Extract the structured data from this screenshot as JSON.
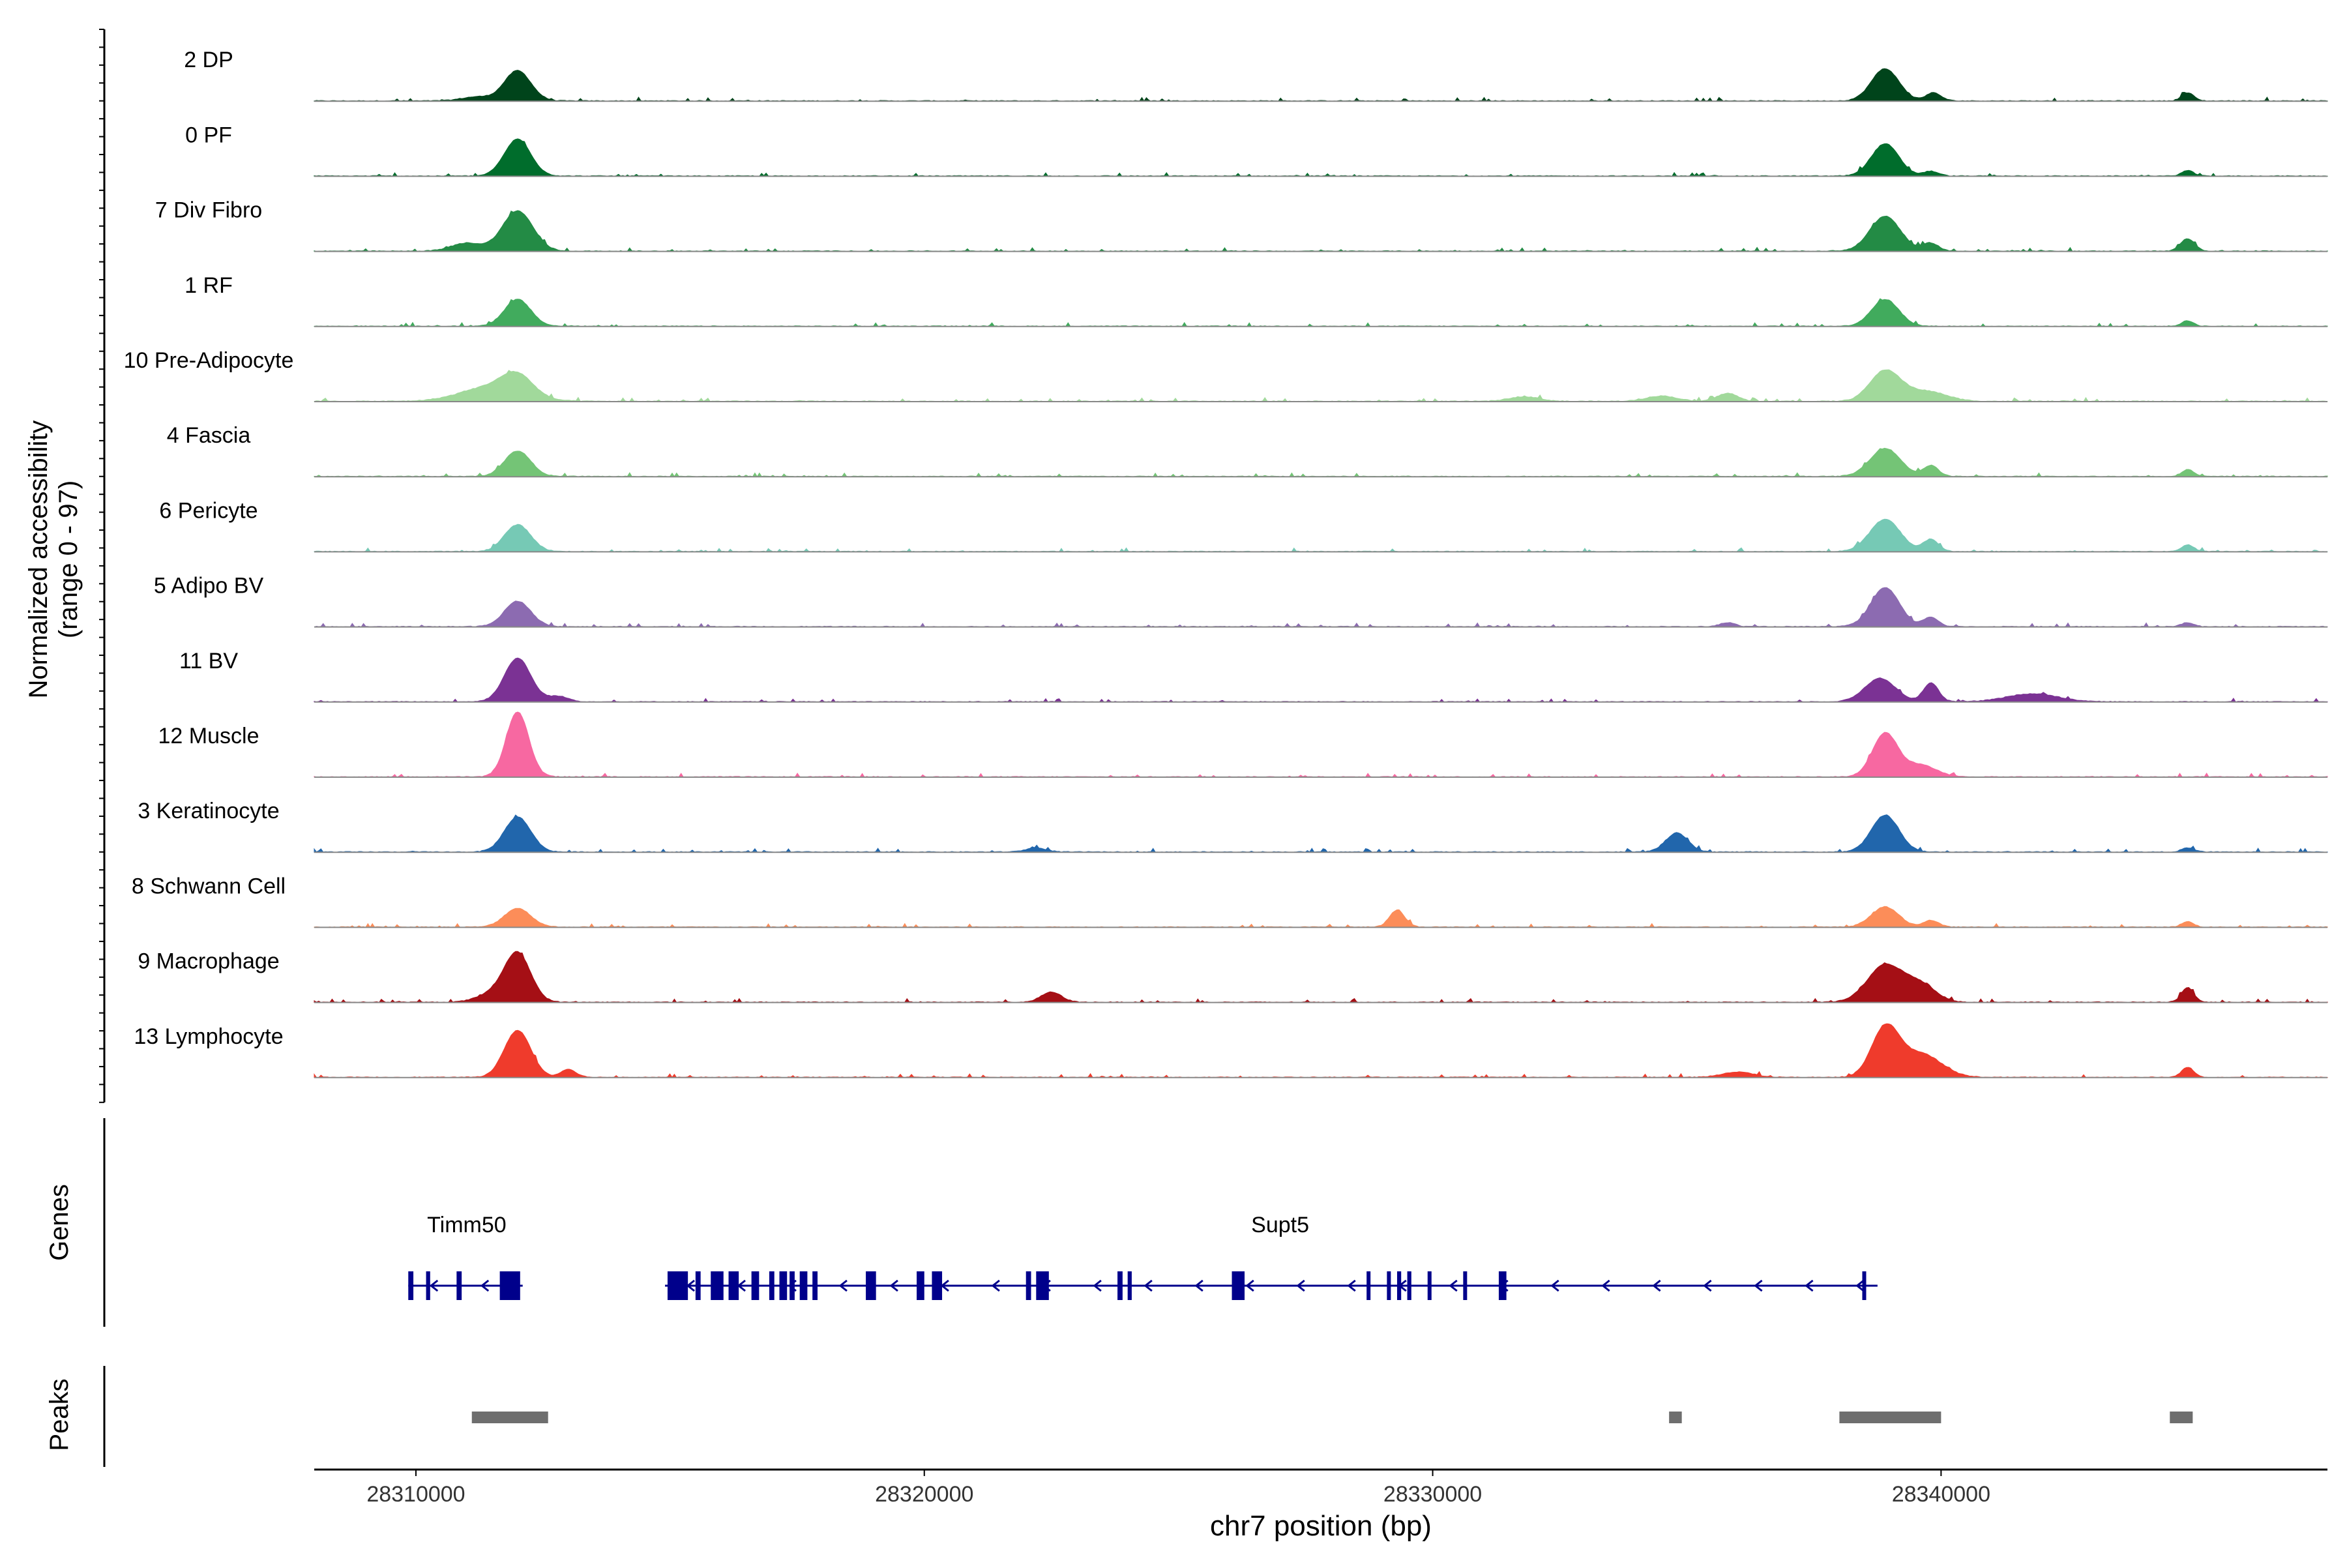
{
  "chart_data": {
    "type": "area",
    "title": "",
    "ylabel_line1": "Normalized accessibility",
    "ylabel_line2": "(range 0 - 97)",
    "xlabel": "chr7 position (bp)",
    "xlim": [
      28308000,
      28347600
    ],
    "ylim": [
      0,
      97
    ],
    "xticks": [
      "28310000",
      "28320000",
      "28330000",
      "28340000"
    ],
    "xtick_values": [
      28310000,
      28320000,
      28330000,
      28340000
    ],
    "peak_shapes": {
      "A": [
        [
          28312000,
          1.0,
          250
        ]
      ],
      "B": [
        [
          28338900,
          1.0,
          260
        ],
        [
          28339800,
          0.18,
          150
        ],
        [
          28344850,
          0.14,
          120
        ]
      ]
    },
    "tracks": [
      {
        "label": "2 DP",
        "color": "#00441b",
        "peaks": [
          [
            28312000,
            45,
            260
          ],
          [
            28338900,
            48,
            270
          ],
          [
            28339850,
            12,
            150
          ],
          [
            28344850,
            12,
            120
          ],
          [
            28311200,
            6,
            300
          ]
        ]
      },
      {
        "label": "0 PF",
        "color": "#006d2c",
        "peaks": [
          [
            28312000,
            55,
            260
          ],
          [
            28338900,
            48,
            270
          ],
          [
            28344850,
            8,
            120
          ],
          [
            28339800,
            7,
            150
          ]
        ]
      },
      {
        "label": "7 Div Fibro",
        "color": "#238b45",
        "peaks": [
          [
            28312000,
            60,
            300
          ],
          [
            28338900,
            52,
            300
          ],
          [
            28339800,
            12,
            150
          ],
          [
            28344850,
            18,
            140
          ],
          [
            28311000,
            12,
            300
          ]
        ]
      },
      {
        "label": "1 RF",
        "color": "#41ab5d",
        "peaks": [
          [
            28312000,
            40,
            260
          ],
          [
            28338900,
            40,
            270
          ],
          [
            28344850,
            8,
            120
          ]
        ]
      },
      {
        "label": "10 Pre-Adipocyte",
        "color": "#a1d99b",
        "peaks": [
          [
            28311500,
            22,
            600
          ],
          [
            28312000,
            28,
            300
          ],
          [
            28338900,
            45,
            300
          ],
          [
            28339700,
            15,
            400
          ],
          [
            28335800,
            12,
            200
          ],
          [
            28334500,
            8,
            300
          ],
          [
            28331800,
            7,
            300
          ]
        ]
      },
      {
        "label": "4 Fascia",
        "color": "#74c476",
        "peaks": [
          [
            28312000,
            38,
            260
          ],
          [
            28338900,
            42,
            300
          ],
          [
            28339800,
            16,
            150
          ],
          [
            28344850,
            10,
            120
          ]
        ]
      },
      {
        "label": "6 Pericyte",
        "color": "#76c9b5",
        "peaks": [
          [
            28312000,
            40,
            260
          ],
          [
            28338900,
            48,
            300
          ],
          [
            28339800,
            18,
            150
          ],
          [
            28344850,
            10,
            120
          ]
        ]
      },
      {
        "label": "5 Adipo BV",
        "color": "#8c6bb1",
        "peaks": [
          [
            28312000,
            38,
            260
          ],
          [
            28338900,
            58,
            280
          ],
          [
            28339800,
            14,
            150
          ],
          [
            28335800,
            6,
            150
          ],
          [
            28344850,
            6,
            120
          ]
        ]
      },
      {
        "label": "11 BV",
        "color": "#7b3294",
        "peaks": [
          [
            28312000,
            65,
            260
          ],
          [
            28338800,
            35,
            300
          ],
          [
            28339800,
            28,
            150
          ],
          [
            28341800,
            12,
            500
          ],
          [
            28312800,
            8,
            200
          ]
        ]
      },
      {
        "label": "12 Muscle",
        "color": "#f768a1",
        "peaks": [
          [
            28312000,
            97,
            220
          ],
          [
            28338900,
            65,
            250
          ],
          [
            28339600,
            18,
            300
          ]
        ]
      },
      {
        "label": "3 Keratinocyte",
        "color": "#2166ac",
        "peaks": [
          [
            28312000,
            52,
            260
          ],
          [
            28338900,
            55,
            270
          ],
          [
            28334800,
            28,
            220
          ],
          [
            28322200,
            6,
            200
          ],
          [
            28344850,
            6,
            120
          ]
        ]
      },
      {
        "label": "8 Schwann Cell",
        "color": "#fc8d59",
        "peaks": [
          [
            28312000,
            28,
            260
          ],
          [
            28338900,
            30,
            270
          ],
          [
            28329300,
            25,
            150
          ],
          [
            28339800,
            10,
            150
          ],
          [
            28344850,
            8,
            120
          ]
        ]
      },
      {
        "label": "9 Macrophage",
        "color": "#a50f15",
        "peaks": [
          [
            28312000,
            72,
            260
          ],
          [
            28338900,
            55,
            350
          ],
          [
            28339600,
            25,
            300
          ],
          [
            28344850,
            22,
            120
          ],
          [
            28322500,
            15,
            200
          ],
          [
            28311500,
            12,
            300
          ]
        ]
      },
      {
        "label": "13 Lymphocyte",
        "color": "#ef3b2c",
        "peaks": [
          [
            28312000,
            70,
            260
          ],
          [
            28338900,
            72,
            270
          ],
          [
            28339600,
            35,
            400
          ],
          [
            28313000,
            12,
            150
          ],
          [
            28344850,
            15,
            120
          ],
          [
            28336000,
            8,
            300
          ]
        ]
      }
    ],
    "genes_label": "Genes",
    "genes": [
      {
        "name": "Timm50",
        "label_pos": 28311000,
        "start": 28309850,
        "end": 28312100,
        "strand": "-",
        "exons": [
          [
            28309850,
            28309950
          ],
          [
            28310200,
            28310280
          ],
          [
            28310800,
            28310900
          ],
          [
            28311650,
            28312050
          ]
        ]
      },
      {
        "name": "Supt5",
        "label_pos": 28327000,
        "start": 28314900,
        "end": 28338750,
        "strand": "-",
        "exons": [
          [
            28314950,
            28315350
          ],
          [
            28315500,
            28315600
          ],
          [
            28315800,
            28316050
          ],
          [
            28316150,
            28316350
          ],
          [
            28316600,
            28316750
          ],
          [
            28316950,
            28317050
          ],
          [
            28317150,
            28317300
          ],
          [
            28317350,
            28317450
          ],
          [
            28317550,
            28317700
          ],
          [
            28317800,
            28317900
          ],
          [
            28318850,
            28319050
          ],
          [
            28319850,
            28320000
          ],
          [
            28320150,
            28320350
          ],
          [
            28322000,
            28322100
          ],
          [
            28322200,
            28322450
          ],
          [
            28323800,
            28323900
          ],
          [
            28324000,
            28324080
          ],
          [
            28326050,
            28326300
          ],
          [
            28328700,
            28328750
          ],
          [
            28329100,
            28329150
          ],
          [
            28329300,
            28329380
          ],
          [
            28329500,
            28329580
          ],
          [
            28329900,
            28329950
          ],
          [
            28330600,
            28330650
          ],
          [
            28331300,
            28331450
          ],
          [
            28338450,
            28338500
          ]
        ]
      }
    ],
    "peaks_label": "Peaks",
    "peak_regions": [
      [
        28311100,
        28312600
      ],
      [
        28334650,
        28334900
      ],
      [
        28338000,
        28340000
      ],
      [
        28344500,
        28344950
      ]
    ]
  }
}
